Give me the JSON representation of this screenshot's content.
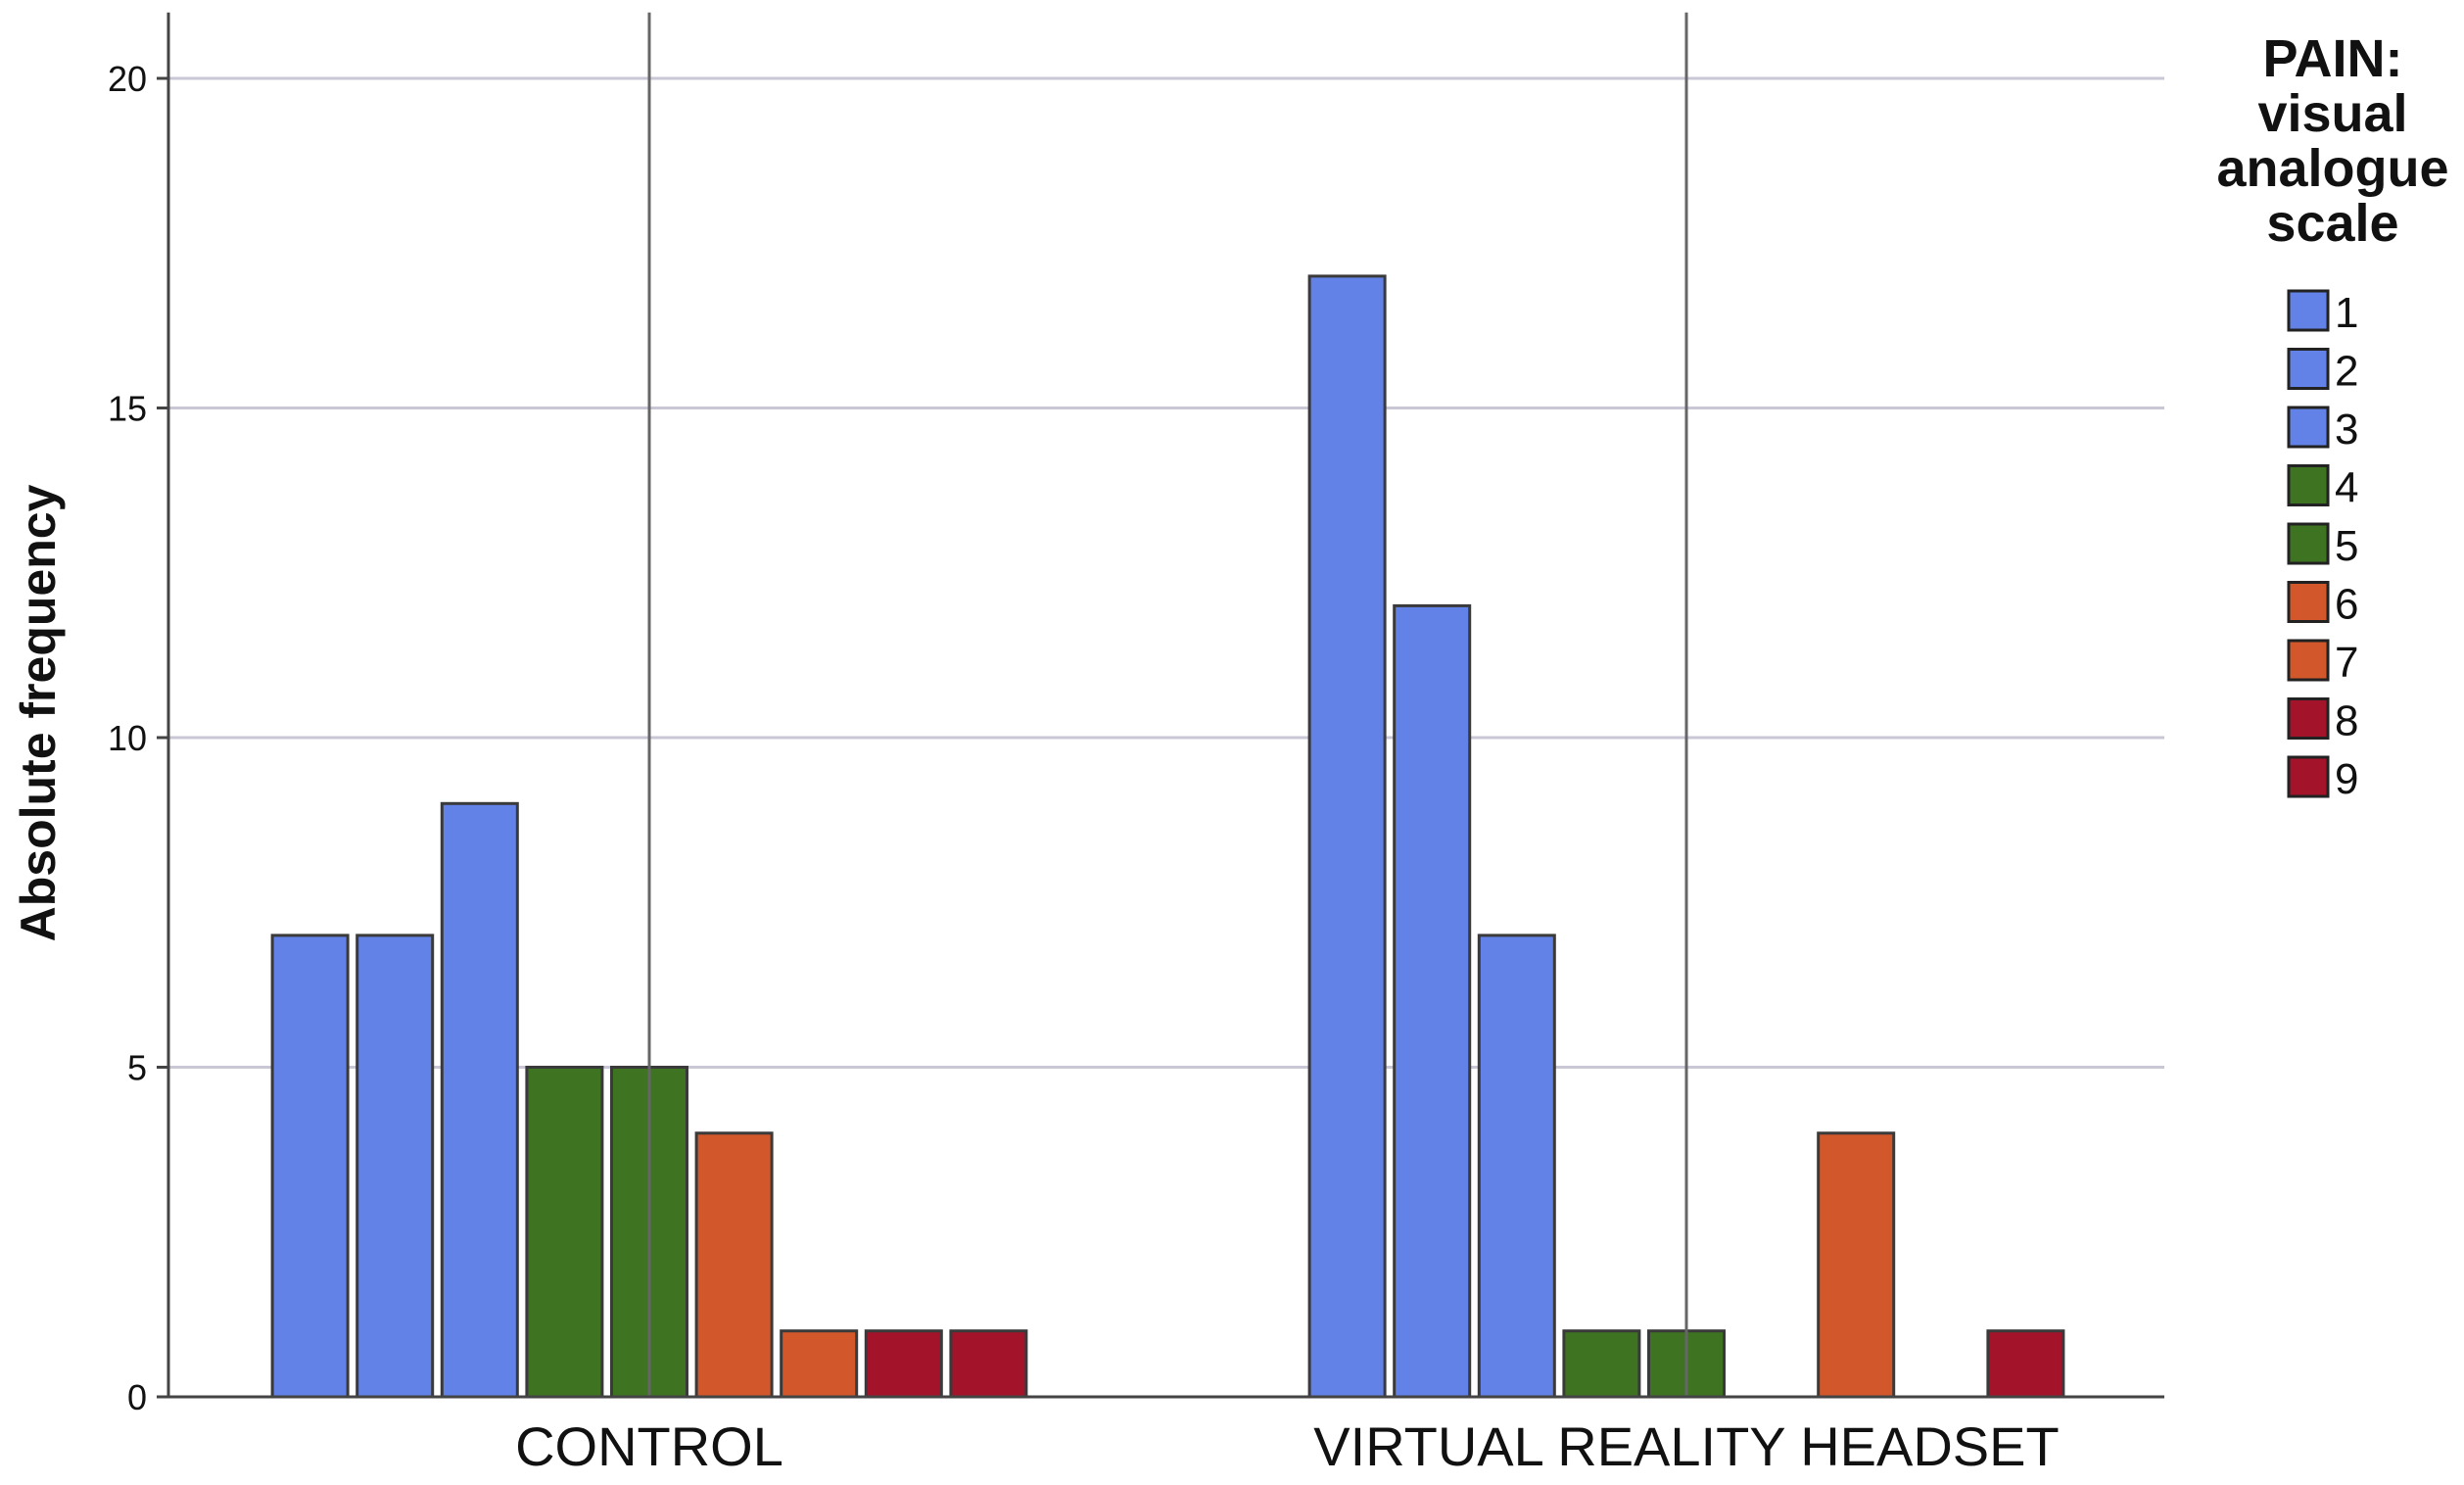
{
  "chart_data": {
    "type": "bar",
    "ylabel": "Absolute frequency",
    "xlabel": "",
    "ylim": [
      0,
      21
    ],
    "yticks": [
      0,
      5,
      10,
      15,
      20
    ],
    "grid": true,
    "legend_position": "right",
    "legend_title": [
      "PAIN:",
      "visual",
      "analogue",
      "scale"
    ],
    "categories": [
      "CONTROL",
      "VIRTUAL REALITY HEADSET"
    ],
    "series": [
      {
        "name": "1",
        "color": "#6382E8",
        "values": [
          7,
          17
        ]
      },
      {
        "name": "2",
        "color": "#6382E8",
        "values": [
          7,
          12
        ]
      },
      {
        "name": "3",
        "color": "#6382E8",
        "values": [
          9,
          7
        ]
      },
      {
        "name": "4",
        "color": "#3E7322",
        "values": [
          5,
          1
        ]
      },
      {
        "name": "5",
        "color": "#3E7322",
        "values": [
          5,
          1
        ]
      },
      {
        "name": "6",
        "color": "#D2582B",
        "values": [
          4,
          0
        ]
      },
      {
        "name": "7",
        "color": "#D2582B",
        "values": [
          1,
          4
        ]
      },
      {
        "name": "8",
        "color": "#A3142B",
        "values": [
          1,
          0
        ]
      },
      {
        "name": "9",
        "color": "#A3142B",
        "values": [
          1,
          1
        ]
      }
    ]
  }
}
